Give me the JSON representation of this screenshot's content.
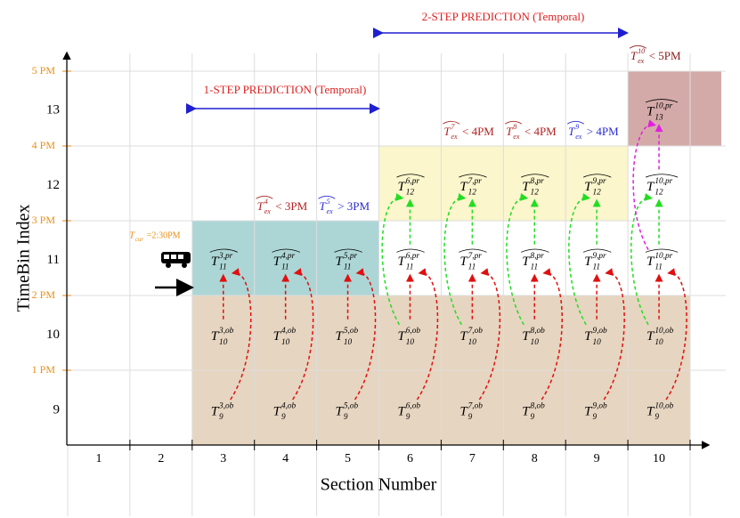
{
  "y_axis": {
    "title": "TimeBin Index",
    "rows": [
      "9",
      "10",
      "11",
      "12",
      "13"
    ],
    "times": [
      "1 PM",
      "2 PM",
      "3 PM",
      "4 PM",
      "5 PM"
    ]
  },
  "x_axis": {
    "title": "Section Number",
    "sections": [
      "1",
      "2",
      "3",
      "4",
      "5",
      "6",
      "7",
      "8",
      "9",
      "10"
    ]
  },
  "predictions": [
    {
      "label": "1-STEP PREDICTION (Temporal)"
    },
    {
      "label": "2-STEP PREDICTION (Temporal)"
    }
  ],
  "current_time": {
    "symbol": "T",
    "subscript": "cur",
    "text": "=2:30PM"
  },
  "thresholds": [
    {
      "symbol": "T",
      "subscript": "ex",
      "superscript": "4",
      "text": "< 3PM",
      "color": "#b22222"
    },
    {
      "symbol": "T",
      "subscript": "ex",
      "superscript": "5",
      "text": "> 3PM",
      "color": "#2b2bd6"
    },
    {
      "symbol": "T",
      "subscript": "ex",
      "superscript": "7",
      "text": "< 4PM",
      "color": "#b22222"
    },
    {
      "symbol": "T",
      "subscript": "ex",
      "superscript": "8",
      "text": "< 4PM",
      "color": "#b22222"
    },
    {
      "symbol": "T",
      "subscript": "ex",
      "superscript": "9",
      "text": "> 4PM",
      "color": "#2b2bd6"
    },
    {
      "symbol": "T",
      "subscript": "ex",
      "superscript": "10",
      "text": "< 5PM",
      "color": "#8b1a1a"
    }
  ],
  "columns": [
    {
      "nodes": [
        {
          "symbol": "T",
          "subscript": "9",
          "superscript": "3,ob"
        },
        {
          "symbol": "T",
          "subscript": "10",
          "superscript": "3,ob"
        },
        {
          "symbol": "T",
          "subscript": "11",
          "superscript": "3,pr"
        }
      ]
    },
    {
      "nodes": [
        {
          "symbol": "T",
          "subscript": "9",
          "superscript": "4,ob"
        },
        {
          "symbol": "T",
          "subscript": "10",
          "superscript": "4,ob"
        },
        {
          "symbol": "T",
          "subscript": "11",
          "superscript": "4,pr"
        }
      ]
    },
    {
      "nodes": [
        {
          "symbol": "T",
          "subscript": "9",
          "superscript": "5,ob"
        },
        {
          "symbol": "T",
          "subscript": "10",
          "superscript": "5,ob"
        },
        {
          "symbol": "T",
          "subscript": "11",
          "superscript": "5,pr"
        }
      ]
    },
    {
      "nodes": [
        {
          "symbol": "T",
          "subscript": "9",
          "superscript": "6,ob"
        },
        {
          "symbol": "T",
          "subscript": "10",
          "superscript": "6,ob"
        },
        {
          "symbol": "T",
          "subscript": "11",
          "superscript": "6,pr"
        },
        {
          "symbol": "T",
          "subscript": "12",
          "superscript": "6,pr"
        }
      ]
    },
    {
      "nodes": [
        {
          "symbol": "T",
          "subscript": "9",
          "superscript": "7,ob"
        },
        {
          "symbol": "T",
          "subscript": "10",
          "superscript": "7,ob"
        },
        {
          "symbol": "T",
          "subscript": "11",
          "superscript": "7,pr"
        },
        {
          "symbol": "T",
          "subscript": "12",
          "superscript": "7,pr"
        }
      ]
    },
    {
      "nodes": [
        {
          "symbol": "T",
          "subscript": "9",
          "superscript": "8,ob"
        },
        {
          "symbol": "T",
          "subscript": "10",
          "superscript": "8,ob"
        },
        {
          "symbol": "T",
          "subscript": "11",
          "superscript": "8,pr"
        },
        {
          "symbol": "T",
          "subscript": "12",
          "superscript": "8,pr"
        }
      ]
    },
    {
      "nodes": [
        {
          "symbol": "T",
          "subscript": "9",
          "superscript": "9,ob"
        },
        {
          "symbol": "T",
          "subscript": "10",
          "superscript": "9,ob"
        },
        {
          "symbol": "T",
          "subscript": "11",
          "superscript": "9,pr"
        },
        {
          "symbol": "T",
          "subscript": "12",
          "superscript": "9,pr"
        }
      ]
    },
    {
      "nodes": [
        {
          "symbol": "T",
          "subscript": "9",
          "superscript": "10,ob"
        },
        {
          "symbol": "T",
          "subscript": "10",
          "superscript": "10,ob"
        },
        {
          "symbol": "T",
          "subscript": "11",
          "superscript": "10,pr"
        },
        {
          "symbol": "T",
          "subscript": "12",
          "superscript": "10,pr"
        },
        {
          "symbol": "T",
          "subscript": "13",
          "superscript": "10,pr"
        }
      ]
    }
  ]
}
